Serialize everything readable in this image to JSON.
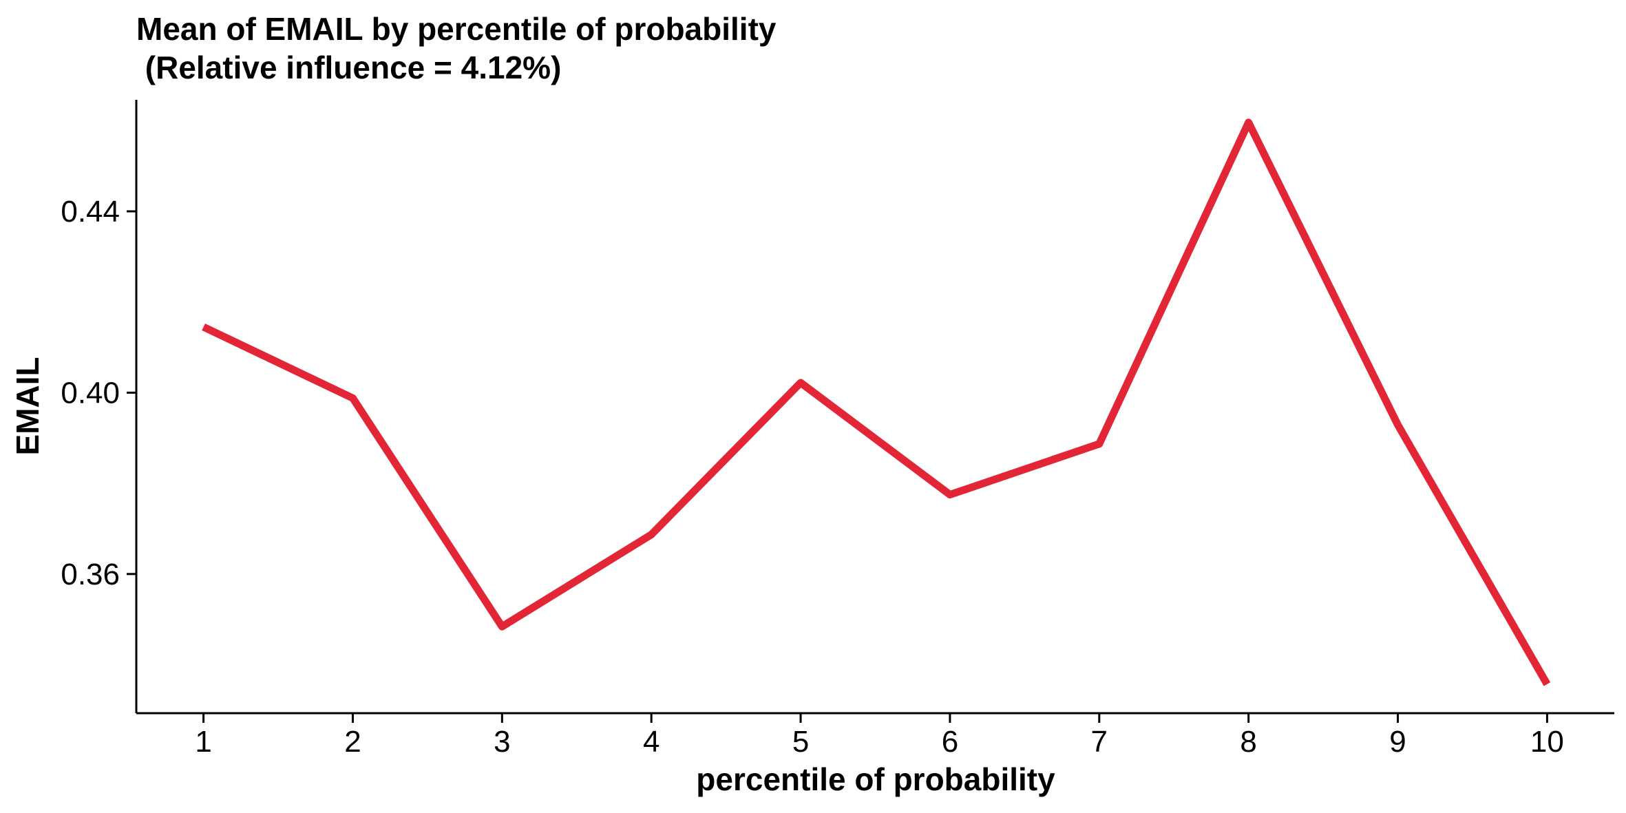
{
  "chart_data": {
    "type": "line",
    "title_lines": [
      "Mean of EMAIL by percentile of probability",
      " (Relative influence = 4.12%)"
    ],
    "xlabel": "percentile of probability",
    "ylabel": "EMAIL",
    "x": [
      1,
      2,
      3,
      4,
      5,
      6,
      7,
      8,
      9,
      10
    ],
    "x_ticks": [
      "1",
      "2",
      "3",
      "4",
      "5",
      "6",
      "7",
      "8",
      "9",
      "10"
    ],
    "xlim": [
      0.55,
      10.45
    ],
    "y_ticks": [
      "0.36",
      "0.40",
      "0.44"
    ],
    "y_tick_values": [
      0.36,
      0.4,
      0.44
    ],
    "ylim": [
      0.3293,
      0.4646
    ],
    "series": [
      {
        "values": [
          0.4145,
          0.3988,
          0.3484,
          0.3687,
          0.4022,
          0.3775,
          0.3887,
          0.4596,
          0.3929,
          0.3357
        ],
        "color": "#E32636"
      }
    ],
    "grid": false,
    "legend": "none"
  }
}
